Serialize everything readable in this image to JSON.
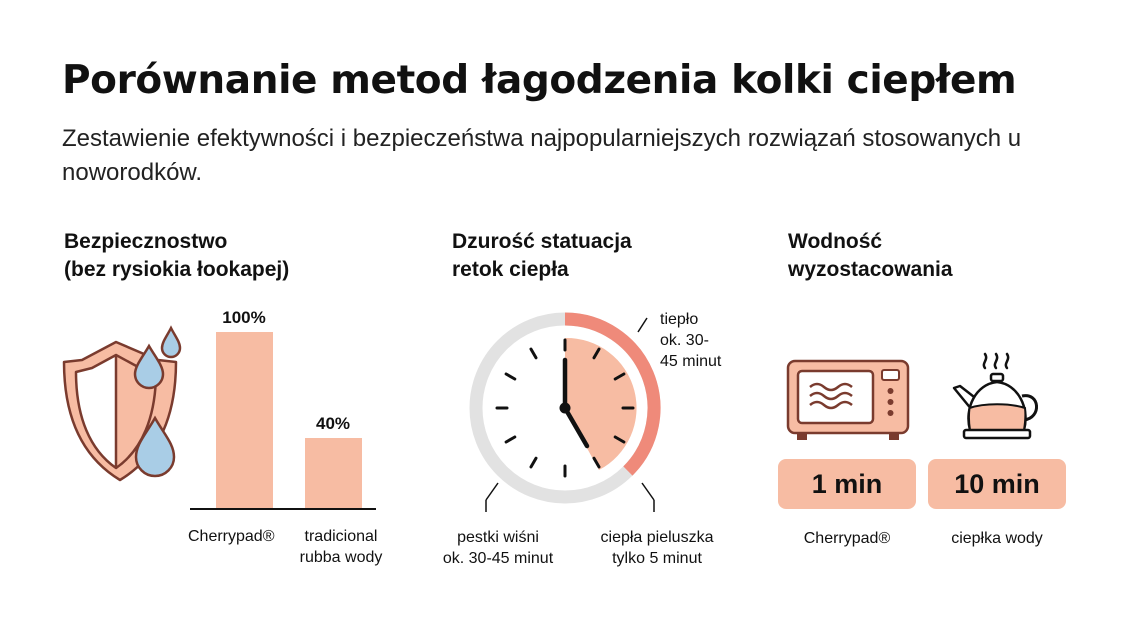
{
  "header": {
    "title": "Porównanie metod łagodzenia kolki ciepłem",
    "subtitle": "Zestawienie efektywności i bezpieczeństwa najpopularniejszych rozwiązań stosowanych u noworodków."
  },
  "sections": {
    "safety": {
      "title_lines": [
        "Bezpiecznostwo",
        "(bez rysiokia łookapej)"
      ],
      "bars": [
        {
          "label": "Cherrypad®",
          "value": 100,
          "value_label": "100%"
        },
        {
          "label_lines": [
            "tradicional",
            "rubba wody"
          ],
          "value": 40,
          "value_label": "40%"
        }
      ],
      "icon": "shield-with-water-drops-icon"
    },
    "duration": {
      "title_lines": [
        "Dzurość statuacja",
        "retok ciepła"
      ],
      "icon": "clock-icon",
      "labels": {
        "warm": [
          "tiepło",
          "ok. 30-",
          "45 minut"
        ],
        "cherry": [
          "pestki wiśni",
          "ok. 30-45 minut"
        ],
        "diaper": [
          "ciepła pieluszka",
          "tylko 5 minut"
        ]
      }
    },
    "heating": {
      "title_lines": [
        "Wodność",
        "wyzostacowania"
      ],
      "items": [
        {
          "icon": "microwave-icon",
          "time": "1 min",
          "label": "Cherrypad®"
        },
        {
          "icon": "kettle-icon",
          "time": "10 min",
          "label": "ciepłka wody"
        }
      ]
    }
  },
  "colors": {
    "accent_light": "#f7bca3",
    "accent_dark": "#ef8a7a",
    "icon_stroke": "#7a3b2e",
    "drop_blue": "#a9cde6",
    "clock_ring": "#e2e2e2",
    "text": "#111111"
  }
}
